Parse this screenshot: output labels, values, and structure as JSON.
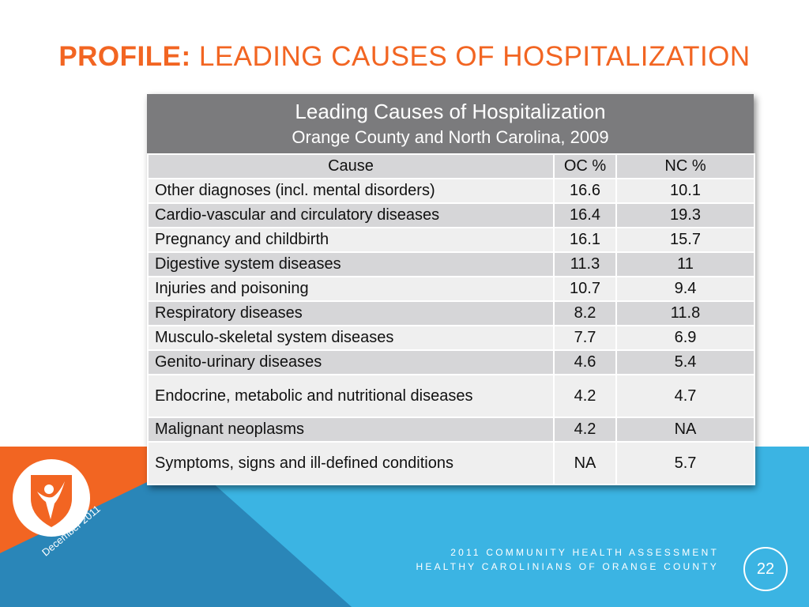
{
  "slide": {
    "title_bold": "PROFILE:",
    "title_rest": " LEADING CAUSES OF HOSPITALIZATION",
    "date": "December 2011",
    "footer_line1": "2011 COMMUNITY HEALTH ASSESSMENT",
    "footer_line2": "HEALTHY CAROLINIANS OF ORANGE COUNTY",
    "page_number": "22",
    "logo_icon": "person-shield-logo-icon"
  },
  "colors": {
    "accent_orange": "#f26522",
    "bg_blue": "#3bb4e3",
    "bg_blue_dark": "#2d8fc4",
    "header_gray": "#7b7b7d"
  },
  "table": {
    "title": "Leading Causes of Hospitalization",
    "subtitle": "Orange County and North Carolina, 2009",
    "columns": [
      "Cause",
      "OC %",
      "NC %"
    ],
    "rows": [
      {
        "cause": "Other diagnoses (incl. mental disorders)",
        "oc": "16.6",
        "nc": "10.1"
      },
      {
        "cause": "Cardio-vascular and circulatory diseases",
        "oc": "16.4",
        "nc": "19.3"
      },
      {
        "cause": "Pregnancy and childbirth",
        "oc": "16.1",
        "nc": "15.7"
      },
      {
        "cause": "Digestive system diseases",
        "oc": "11.3",
        "nc": "11"
      },
      {
        "cause": "Injuries and poisoning",
        "oc": "10.7",
        "nc": "9.4"
      },
      {
        "cause": "Respiratory diseases",
        "oc": "8.2",
        "nc": "11.8"
      },
      {
        "cause": "Musculo-skeletal system diseases",
        "oc": "7.7",
        "nc": "6.9"
      },
      {
        "cause": "Genito-urinary diseases",
        "oc": "4.6",
        "nc": "5.4"
      },
      {
        "cause": "Endocrine, metabolic and nutritional diseases",
        "oc": "4.2",
        "nc": "4.7"
      },
      {
        "cause": "Malignant neoplasms",
        "oc": "4.2",
        "nc": "NA"
      },
      {
        "cause": "Symptoms, signs and ill-defined conditions",
        "oc": "NA",
        "nc": "5.7"
      }
    ]
  }
}
